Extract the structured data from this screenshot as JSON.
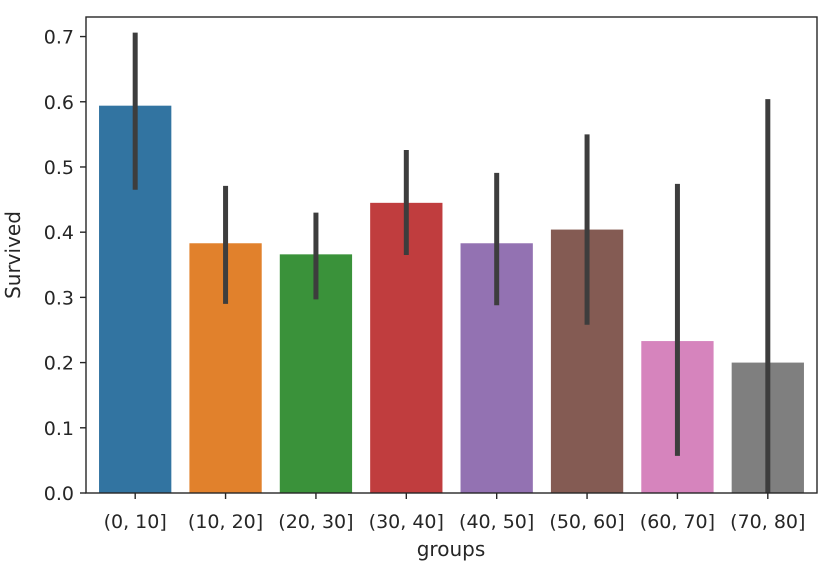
{
  "chart_data": {
    "type": "bar",
    "xlabel": "groups",
    "ylabel": "Survived",
    "ylim": [
      0,
      0.73
    ],
    "yticks": [
      0.0,
      0.1,
      0.2,
      0.3,
      0.4,
      0.5,
      0.6,
      0.7
    ],
    "ytick_labels": [
      "0.0",
      "0.1",
      "0.2",
      "0.3",
      "0.4",
      "0.5",
      "0.6",
      "0.7"
    ],
    "grid": false,
    "legend": "none",
    "categories": [
      "(0, 10]",
      "(10, 20]",
      "(20, 30]",
      "(30, 40]",
      "(40, 50]",
      "(50, 60]",
      "(60, 70]",
      "(70, 80]"
    ],
    "values": [
      0.594,
      0.383,
      0.366,
      0.445,
      0.383,
      0.404,
      0.233,
      0.2
    ],
    "ci_low": [
      0.465,
      0.29,
      0.297,
      0.365,
      0.288,
      0.258,
      0.057,
      0.0
    ],
    "ci_high": [
      0.706,
      0.471,
      0.43,
      0.526,
      0.491,
      0.55,
      0.474,
      0.604
    ],
    "colors": [
      "#3274a1",
      "#e1812c",
      "#3a923a",
      "#c03d3e",
      "#9372b2",
      "#845b53",
      "#d684bd",
      "#7f7f7f"
    ],
    "error_color": "#3d3d3d"
  }
}
